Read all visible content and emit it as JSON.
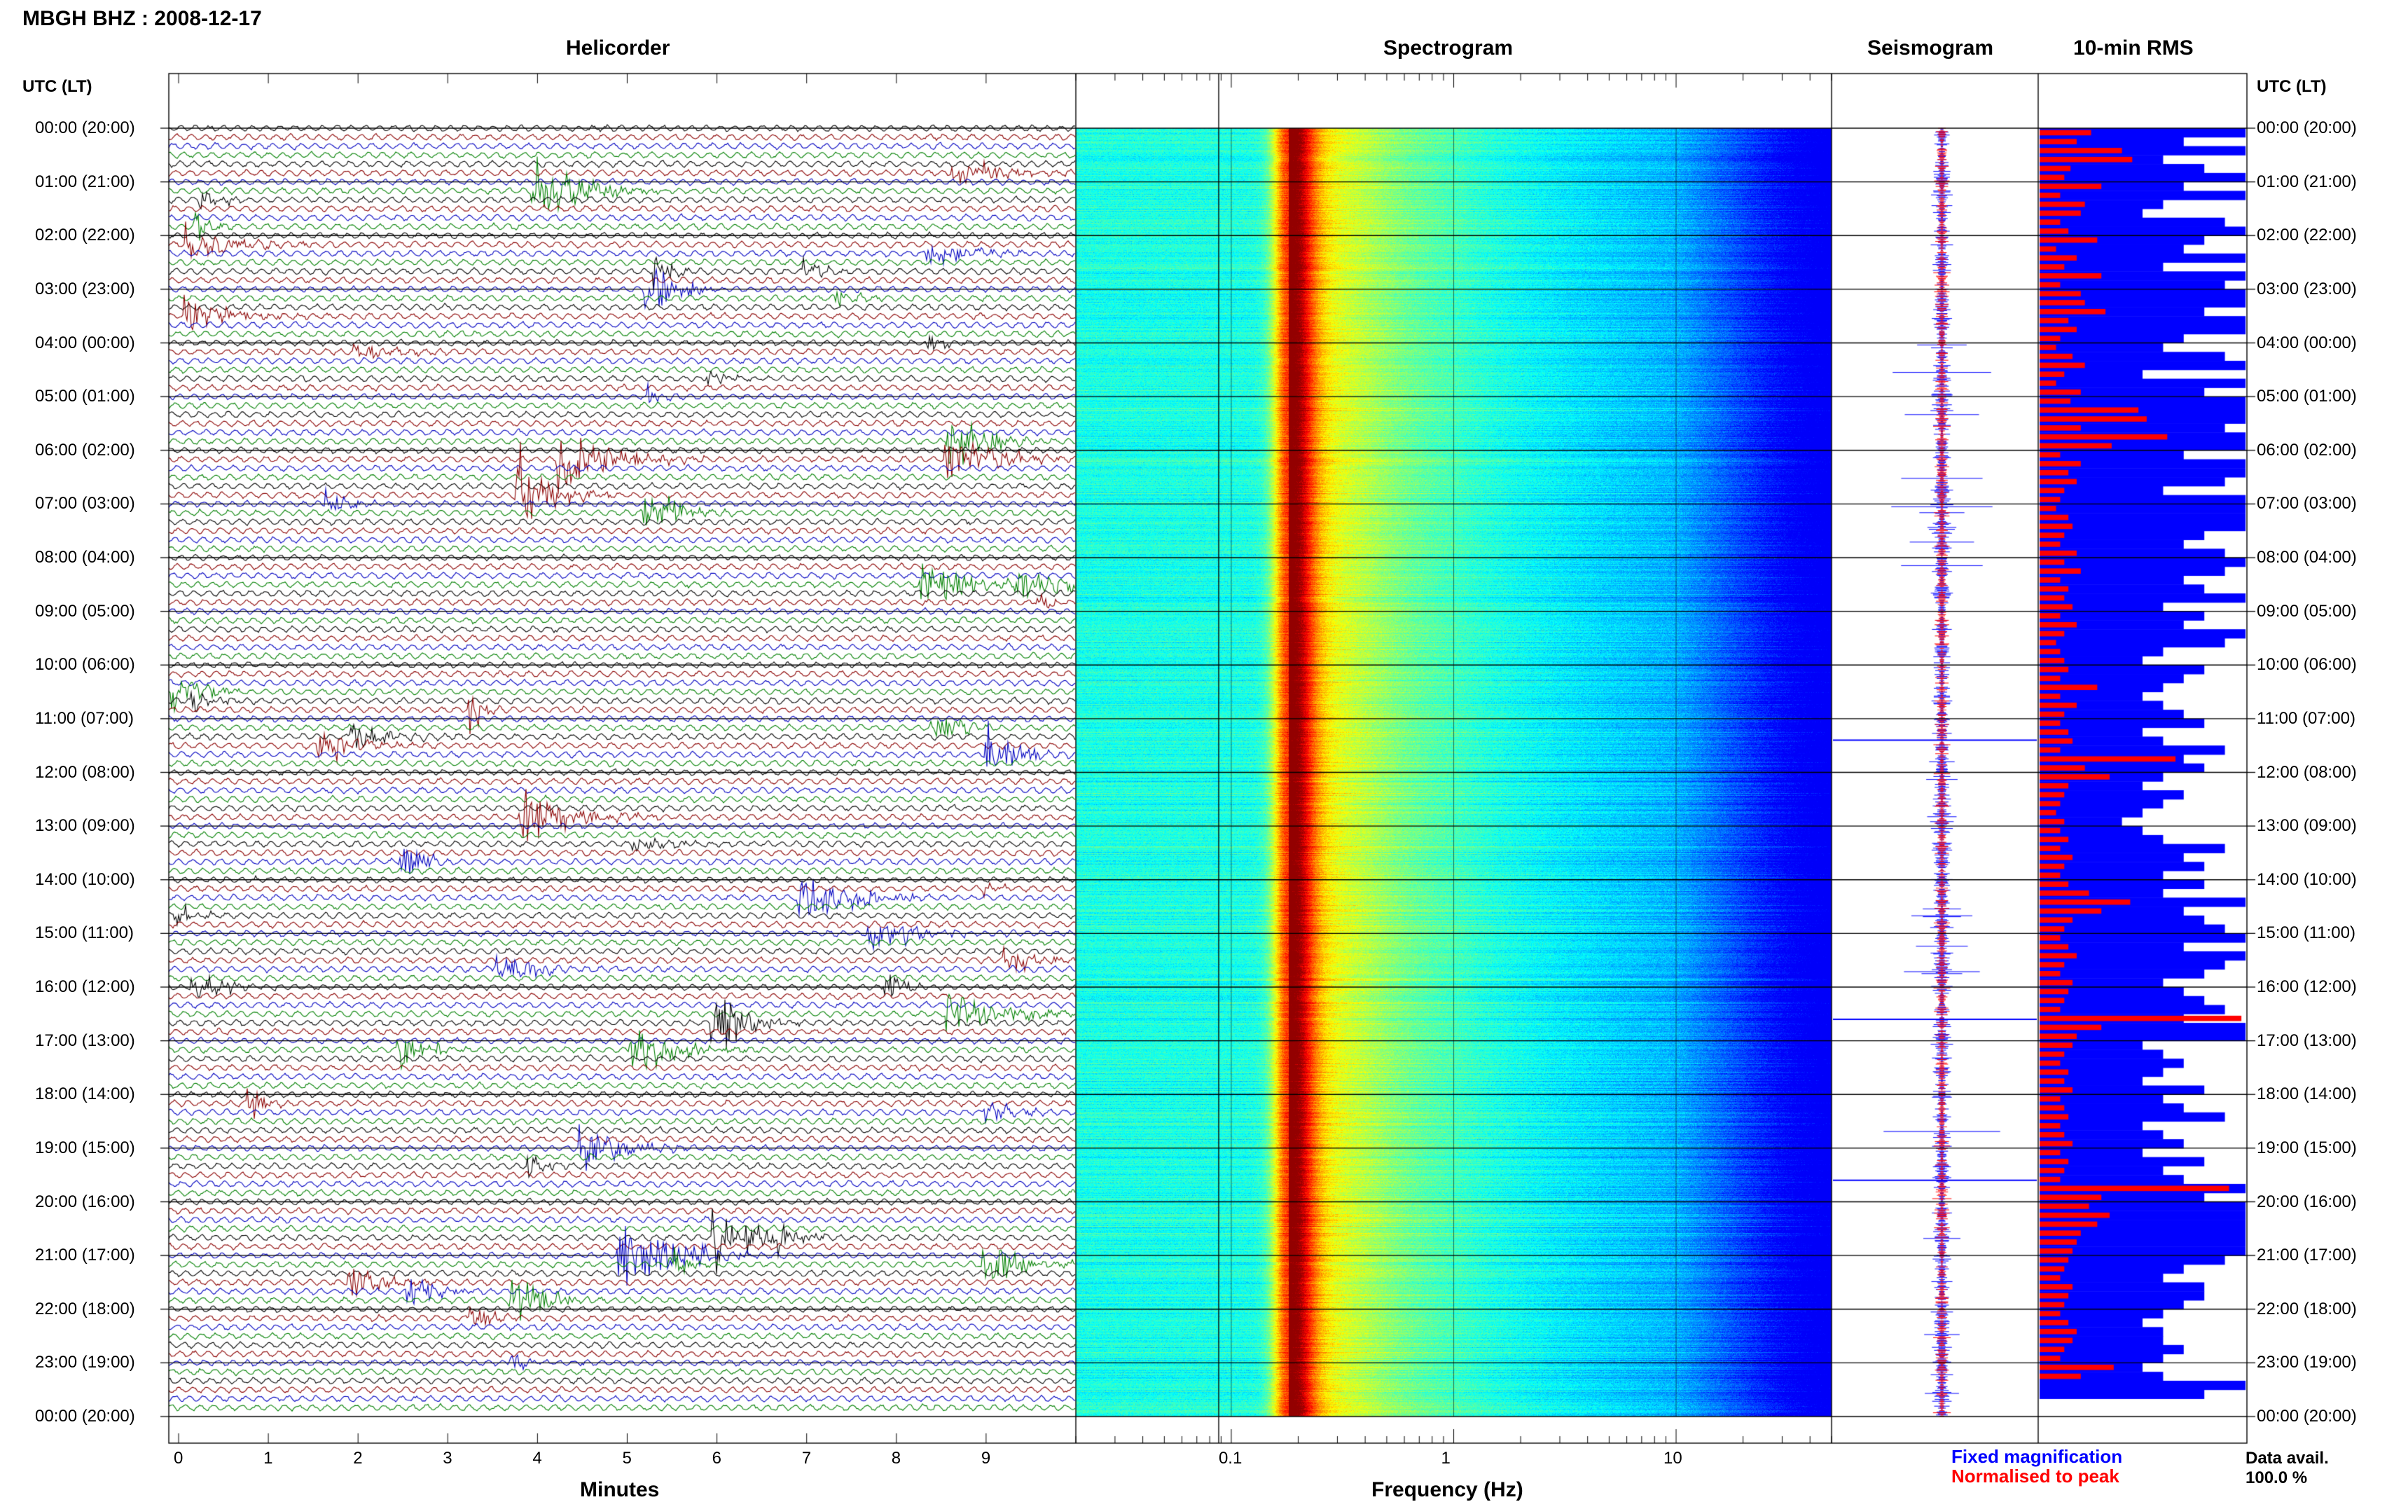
{
  "header": {
    "station_title": "MBGH BHZ : 2008-12-17",
    "left_axis_header": "UTC (LT)",
    "right_axis_header": "UTC (LT)"
  },
  "panels": {
    "helicorder_title": "Helicorder",
    "spectrogram_title": "Spectrogram",
    "seismogram_title": "Seismogram",
    "rms_title": "10-min RMS"
  },
  "footer": {
    "helicorder_xlabel": "Minutes",
    "spectrogram_xlabel": "Frequency (Hz)",
    "legend_fixed": "Fixed magnification",
    "legend_normalised": "Normalised to peak",
    "data_avail_label": "Data avail.",
    "data_avail_value": "100.0 %"
  },
  "colors": {
    "trace_colors": [
      "#000000",
      "#8b0000",
      "#0000c0",
      "#008000"
    ],
    "seismogram_fixed": "#0000ff",
    "seismogram_normalised": "#ff0000",
    "rms_fixed": "#0000ff",
    "rms_normalised": "#ff0000",
    "legend_fixed": "#0000ff",
    "legend_normalised": "#ff0000"
  },
  "chart_data": {
    "type": "heatmap",
    "time_labels": [
      "00:00 (20:00)",
      "01:00 (21:00)",
      "02:00 (22:00)",
      "03:00 (23:00)",
      "04:00 (00:00)",
      "05:00 (01:00)",
      "06:00 (02:00)",
      "07:00 (03:00)",
      "08:00 (04:00)",
      "09:00 (05:00)",
      "10:00 (06:00)",
      "11:00 (07:00)",
      "12:00 (08:00)",
      "13:00 (09:00)",
      "14:00 (10:00)",
      "15:00 (11:00)",
      "16:00 (12:00)",
      "17:00 (13:00)",
      "18:00 (14:00)",
      "19:00 (15:00)",
      "20:00 (16:00)",
      "21:00 (17:00)",
      "22:00 (18:00)",
      "23:00 (19:00)",
      "00:00 (20:00)"
    ],
    "helicorder": {
      "minutes_ticks": [
        "0",
        "1",
        "2",
        "3",
        "4",
        "5",
        "6",
        "7",
        "8",
        "9"
      ],
      "x_range_minutes": [
        0,
        10
      ],
      "lines_per_hour": 6
    },
    "spectrogram": {
      "freq_ticks": [
        "0.1",
        "1",
        "10"
      ],
      "x_scale": "log",
      "freq_range_hz": [
        0.02,
        50
      ],
      "colormap": "jet",
      "microseism_peak_hz": 0.18
    },
    "seismogram": {
      "series": [
        {
          "name": "Fixed magnification",
          "color": "#0000ff"
        },
        {
          "name": "Normalised to peak",
          "color": "#ff0000"
        }
      ]
    },
    "rms_10min": {
      "fixed_magnification": [
        1.0,
        0.7,
        1.0,
        0.6,
        0.8,
        1.0,
        0.7,
        1.0,
        0.6,
        0.5,
        0.9,
        1.0,
        0.8,
        0.7,
        1.0,
        0.6,
        1.0,
        0.9,
        1.0,
        1.0,
        0.8,
        1.0,
        1.0,
        0.7,
        0.6,
        0.9,
        1.0,
        0.5,
        1.0,
        0.8,
        1.0,
        1.0,
        1.0,
        0.9,
        1.0,
        1.0,
        0.7,
        1.0,
        1.0,
        0.9,
        0.6,
        1.0,
        1.0,
        1.0,
        1.0,
        0.8,
        0.7,
        0.9,
        1.0,
        0.9,
        0.7,
        0.8,
        1.0,
        0.6,
        0.8,
        0.7,
        1.0,
        0.9,
        0.6,
        0.5,
        0.8,
        0.7,
        0.6,
        0.5,
        0.6,
        0.7,
        0.8,
        0.5,
        0.6,
        0.9,
        0.7,
        0.8,
        0.6,
        0.5,
        0.7,
        0.6,
        0.5,
        0.4,
        0.5,
        0.6,
        0.9,
        0.7,
        0.8,
        0.6,
        0.8,
        0.6,
        1.0,
        0.7,
        0.8,
        0.9,
        1.0,
        0.7,
        1.0,
        0.9,
        0.8,
        0.6,
        0.7,
        0.8,
        0.9,
        0.7,
        1.0,
        1.0,
        0.5,
        0.6,
        0.7,
        0.6,
        0.5,
        0.8,
        0.6,
        0.7,
        0.9,
        0.5,
        0.6,
        0.7,
        0.5,
        0.8,
        0.6,
        0.7,
        1.0,
        0.8,
        1.0,
        1.0,
        1.0,
        1.0,
        1.0,
        1.0,
        0.9,
        0.7,
        0.6,
        0.8,
        0.8,
        0.7,
        0.6,
        0.5,
        0.6,
        0.6,
        0.7,
        0.6,
        0.5,
        0.6,
        1.0,
        0.8
      ],
      "normalised_to_peak": [
        0.25,
        0.18,
        0.4,
        0.45,
        0.15,
        0.12,
        0.3,
        0.1,
        0.22,
        0.2,
        0.1,
        0.14,
        0.28,
        0.08,
        0.18,
        0.12,
        0.3,
        0.1,
        0.2,
        0.22,
        0.32,
        0.14,
        0.18,
        0.1,
        0.08,
        0.16,
        0.22,
        0.12,
        0.08,
        0.2,
        0.15,
        0.48,
        0.52,
        0.2,
        0.62,
        0.35,
        0.1,
        0.2,
        0.14,
        0.18,
        0.12,
        0.1,
        0.08,
        0.14,
        0.16,
        0.12,
        0.1,
        0.18,
        0.12,
        0.2,
        0.1,
        0.14,
        0.12,
        0.16,
        0.1,
        0.18,
        0.12,
        0.08,
        0.1,
        0.12,
        0.14,
        0.1,
        0.28,
        0.1,
        0.18,
        0.12,
        0.1,
        0.14,
        0.16,
        0.1,
        0.66,
        0.22,
        0.34,
        0.14,
        0.12,
        0.1,
        0.08,
        0.12,
        0.1,
        0.14,
        0.1,
        0.16,
        0.12,
        0.1,
        0.14,
        0.24,
        0.44,
        0.3,
        0.16,
        0.12,
        0.1,
        0.14,
        0.18,
        0.12,
        0.1,
        0.16,
        0.14,
        0.12,
        0.1,
        0.98,
        0.3,
        0.18,
        0.16,
        0.12,
        0.1,
        0.14,
        0.12,
        0.16,
        0.1,
        0.12,
        0.14,
        0.1,
        0.12,
        0.16,
        0.1,
        0.14,
        0.12,
        0.1,
        0.92,
        0.3,
        0.24,
        0.34,
        0.28,
        0.2,
        0.18,
        0.16,
        0.14,
        0.12,
        0.1,
        0.16,
        0.14,
        0.12,
        0.1,
        0.14,
        0.18,
        0.16,
        0.12,
        0.1,
        0.36,
        0.2
      ]
    }
  }
}
